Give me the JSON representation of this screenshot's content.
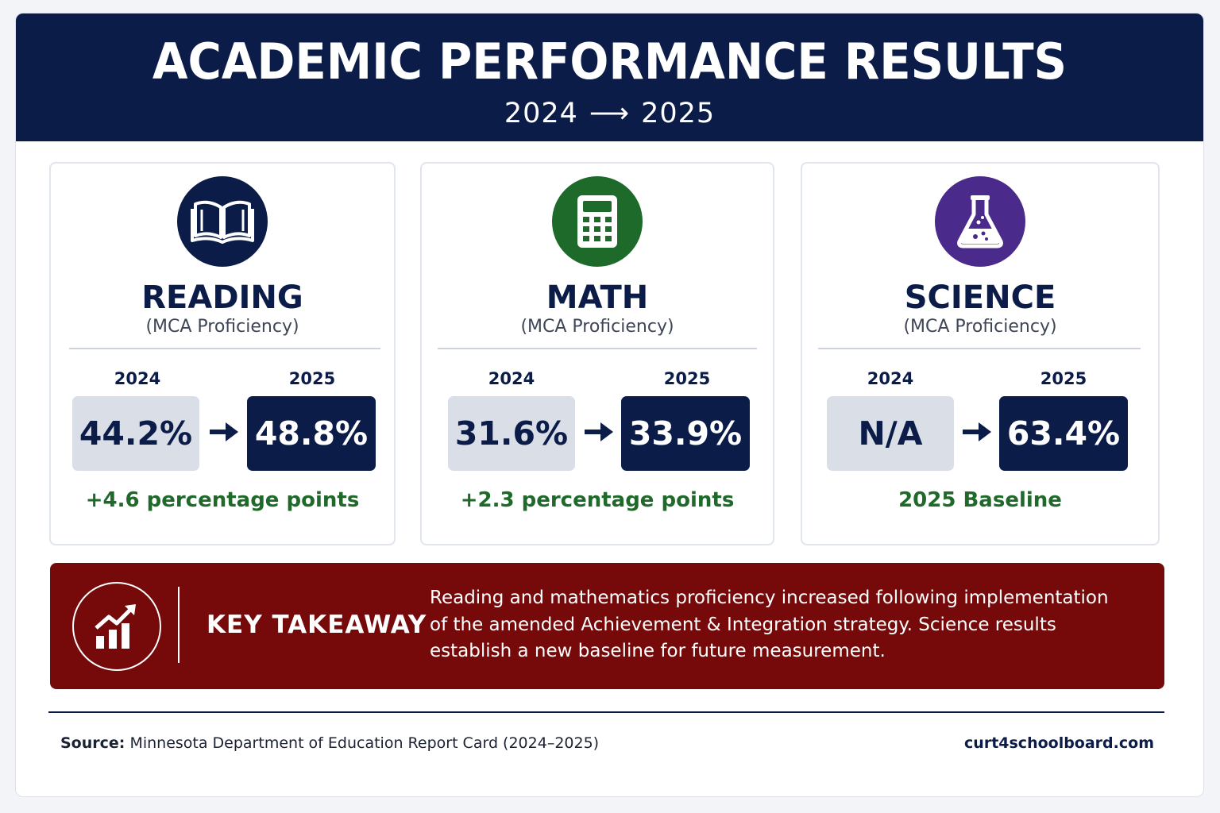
{
  "header": {
    "title": "ACADEMIC PERFORMANCE RESULTS",
    "year_from": "2024",
    "arrow": "⟶",
    "year_to": "2025"
  },
  "cards": [
    {
      "subject": "READING",
      "subtitle": "(MCA Proficiency)",
      "icon": "open-book-icon",
      "icon_color": "#0b1c48",
      "year_from": "2024",
      "year_to": "2025",
      "value_from": "44.2%",
      "value_to": "48.8%",
      "change": "+4.6 percentage points"
    },
    {
      "subject": "MATH",
      "subtitle": "(MCA Proficiency)",
      "icon": "calculator-icon",
      "icon_color": "#1e6a2a",
      "year_from": "2024",
      "year_to": "2025",
      "value_from": "31.6%",
      "value_to": "33.9%",
      "change": "+2.3 percentage points"
    },
    {
      "subject": "SCIENCE",
      "subtitle": "(MCA Proficiency)",
      "icon": "flask-icon",
      "icon_color": "#4a2a8a",
      "year_from": "2024",
      "year_to": "2025",
      "value_from": "N/A",
      "value_to": "63.4%",
      "change": "2025 Baseline"
    }
  ],
  "takeaway": {
    "icon": "growth-chart-icon",
    "label": "KEY TAKEAWAY",
    "text": "Reading and mathematics proficiency increased following implementation of the amended Achievement & Integration strategy. Science results establish a new baseline for future measurement."
  },
  "footer": {
    "source_label": "Source:",
    "source_text": "Minnesota Department of Education Report Card (2024–2025)",
    "site": "curt4schoolboard.com"
  },
  "colors": {
    "navy": "#0b1c48",
    "green": "#1f6a2a",
    "purple": "#4a2a8a",
    "maroon": "#760a0a"
  }
}
